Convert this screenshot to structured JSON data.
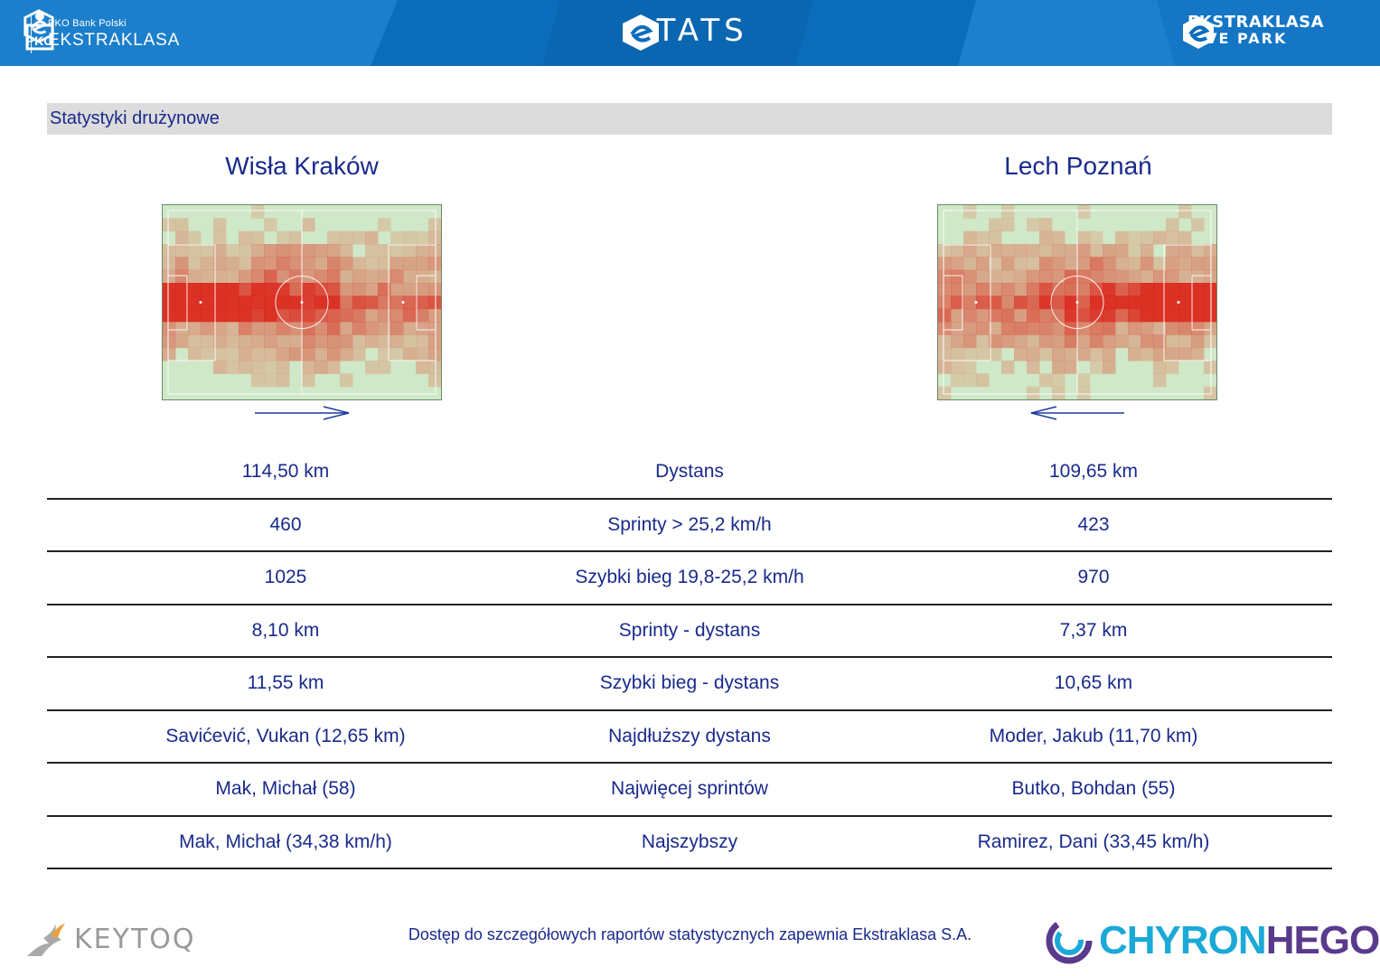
{
  "header": {
    "brand_small": "PKO Bank Polski",
    "brand_big": "EKSTRAKLASA",
    "title": "STATS",
    "live_line1": "EKSTRAKLASA",
    "live_line2": "LIVE PARK",
    "colors": {
      "bar": "#0a6bb8",
      "bar_light": "#2d8fd6"
    }
  },
  "section": {
    "title": "Statystyki drużynowe"
  },
  "teams": {
    "home": {
      "name": "Wisła Kraków",
      "attack_direction": "right"
    },
    "away": {
      "name": "Lech Poznań",
      "attack_direction": "left"
    }
  },
  "stats": [
    {
      "home": "114,50 km",
      "label": "Dystans",
      "away": "109,65 km"
    },
    {
      "home": "460",
      "label": "Sprinty > 25,2 km/h",
      "away": "423"
    },
    {
      "home": "1025",
      "label": "Szybki bieg 19,8-25,2 km/h",
      "away": "970"
    },
    {
      "home": "8,10 km",
      "label": "Sprinty - dystans",
      "away": "7,37 km"
    },
    {
      "home": "11,55 km",
      "label": "Szybki bieg - dystans",
      "away": "10,65 km"
    },
    {
      "home": "Savićević, Vukan (12,65 km)",
      "label": "Najdłuższy dystans",
      "away": "Moder, Jakub (11,70 km)"
    },
    {
      "home": "Mak, Michał (58)",
      "label": "Najwięcej sprintów",
      "away": "Butko, Bohdan (55)"
    },
    {
      "home": "Mak, Michał (34,38 km/h)",
      "label": "Najszybszy",
      "away": "Ramirez, Dani (33,45 km/h)"
    }
  ],
  "footer": {
    "note": "Dostęp do szczegółowych raportów statystycznych zapewnia Ekstraklasa S.A.",
    "left_logo": "KEYTOQ",
    "right_logo_part1": "CHYRON",
    "right_logo_part2": "HEGO"
  }
}
